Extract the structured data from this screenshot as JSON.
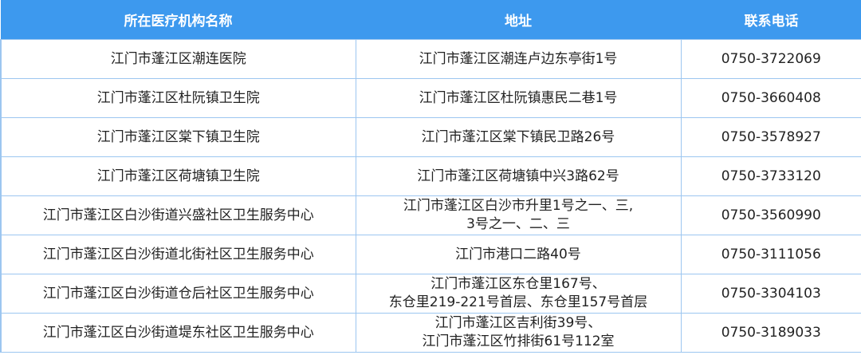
{
  "table": {
    "headers": [
      "所在医疗机构名称",
      "地址",
      "联系电话"
    ],
    "rows": [
      {
        "name": "江门市蓬江区潮连医院",
        "address": [
          "江门市蓬江区潮连卢边东亭街1号"
        ],
        "phone": "0750-3722069"
      },
      {
        "name": "江门市蓬江区杜阮镇卫生院",
        "address": [
          "江门市蓬江区杜阮镇惠民二巷1号"
        ],
        "phone": "0750-3660408"
      },
      {
        "name": "江门市蓬江区棠下镇卫生院",
        "address": [
          "江门市蓬江区棠下镇民卫路26号"
        ],
        "phone": "0750-3578927"
      },
      {
        "name": "江门市蓬江区荷塘镇卫生院",
        "address": [
          "江门市蓬江区荷塘镇中兴3路62号"
        ],
        "phone": "0750-3733120"
      },
      {
        "name": "江门市蓬江区白沙街道兴盛社区卫生服务中心",
        "address": [
          "江门市蓬江区白沙市升里1号之一、三,",
          "3号之一、二、三"
        ],
        "phone": "0750-3560990"
      },
      {
        "name": "江门市蓬江区白沙街道北街社区卫生服务中心",
        "address": [
          "江门市港口二路40号"
        ],
        "phone": "0750-3111056"
      },
      {
        "name": "江门市蓬江区白沙街道仓后社区卫生服务中心",
        "address": [
          "江门市蓬江区东仓里167号、",
          "东仓里219-221号首层、东仓里157号首层"
        ],
        "phone": "0750-3304103"
      },
      {
        "name": "江门市蓬江区白沙街道堤东社区卫生服务中心",
        "address": [
          "江门市蓬江区吉利街39号、",
          "江门市蓬江区竹排街61号112室"
        ],
        "phone": "0750-3189033"
      }
    ]
  },
  "colors": {
    "header_bg": "#3d99ee",
    "border": "#9cc6f0"
  }
}
